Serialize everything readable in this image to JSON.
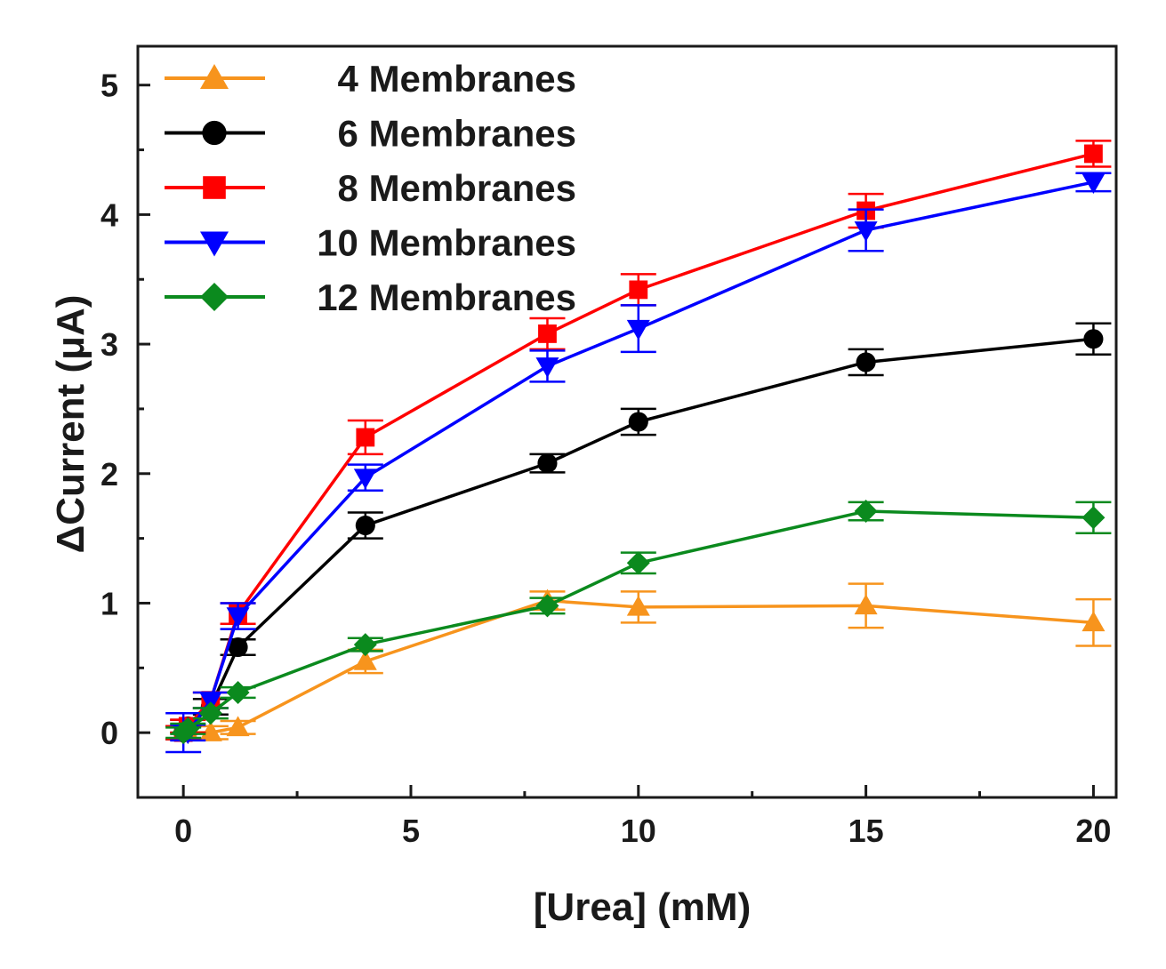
{
  "chart_data": {
    "type": "line",
    "title": "",
    "xlabel": "[Urea] (mM)",
    "ylabel": "ΔCurrent (μA)",
    "xlim": [
      -1,
      20.5
    ],
    "ylim": [
      -0.5,
      5.3
    ],
    "xticks": [
      0,
      5,
      10,
      15,
      20
    ],
    "yticks": [
      0,
      1,
      2,
      3,
      4,
      5
    ],
    "x": [
      0,
      0.1,
      0.6,
      1.2,
      4,
      8,
      10,
      15,
      20
    ],
    "legend_position": "top-left",
    "series": [
      {
        "name": "4 Membranes",
        "color": "#f7941d",
        "marker": "triangle-up",
        "values": [
          0,
          0,
          0,
          0.04,
          0.55,
          1.02,
          0.97,
          0.98,
          0.85
        ],
        "errors": [
          0.05,
          0.05,
          0.05,
          0.05,
          0.09,
          0.07,
          0.12,
          0.17,
          0.18
        ]
      },
      {
        "name": "6 Membranes",
        "color": "#000000",
        "marker": "circle",
        "values": [
          0,
          0.05,
          0.2,
          0.66,
          1.6,
          2.08,
          2.4,
          2.86,
          3.04
        ],
        "errors": [
          0.05,
          0.05,
          0.06,
          0.06,
          0.1,
          0.07,
          0.1,
          0.1,
          0.12
        ]
      },
      {
        "name": "8 Membranes",
        "color": "#ff0000",
        "marker": "square",
        "values": [
          0,
          0.05,
          0.25,
          0.92,
          2.28,
          3.08,
          3.42,
          4.03,
          4.47
        ],
        "errors": [
          0.05,
          0.05,
          0.06,
          0.08,
          0.13,
          0.12,
          0.12,
          0.13,
          0.1
        ]
      },
      {
        "name": "10 Membranes",
        "color": "#0000ff",
        "marker": "triangle-down",
        "values": [
          0,
          0,
          0.25,
          0.9,
          1.97,
          2.83,
          3.12,
          3.88,
          4.25
        ],
        "errors": [
          0.15,
          0.06,
          0.06,
          0.1,
          0.1,
          0.12,
          0.18,
          0.16,
          0.07
        ]
      },
      {
        "name": "12 Membranes",
        "color": "#0b8a1e",
        "marker": "diamond",
        "values": [
          0,
          0.03,
          0.15,
          0.31,
          0.68,
          0.98,
          1.31,
          1.71,
          1.66
        ],
        "errors": [
          0.04,
          0.04,
          0.04,
          0.04,
          0.05,
          0.06,
          0.08,
          0.07,
          0.12
        ]
      }
    ]
  }
}
